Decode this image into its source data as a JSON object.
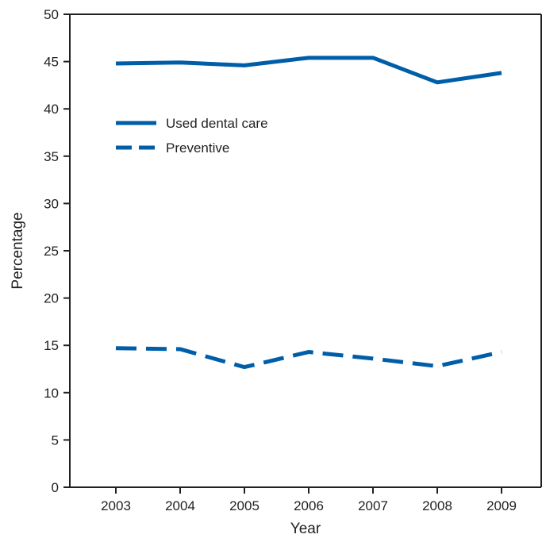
{
  "chart_data": {
    "type": "line",
    "xlabel": "Year",
    "ylabel": "Percentage",
    "x": [
      2003,
      2004,
      2005,
      2006,
      2007,
      2008,
      2009
    ],
    "ylim": [
      0,
      50
    ],
    "yticks": [
      0,
      5,
      10,
      15,
      20,
      25,
      30,
      35,
      40,
      45,
      50
    ],
    "grid": false,
    "legend_position": "upper-left",
    "series": [
      {
        "name": "Used dental care",
        "values": [
          44.8,
          44.9,
          44.6,
          45.4,
          45.4,
          42.8,
          43.8
        ],
        "style": "solid",
        "color": "#005ea8"
      },
      {
        "name": "Preventive",
        "values": [
          14.7,
          14.6,
          12.7,
          14.3,
          13.6,
          12.8,
          14.3
        ],
        "style": "dashed",
        "color": "#005ea8"
      }
    ]
  }
}
